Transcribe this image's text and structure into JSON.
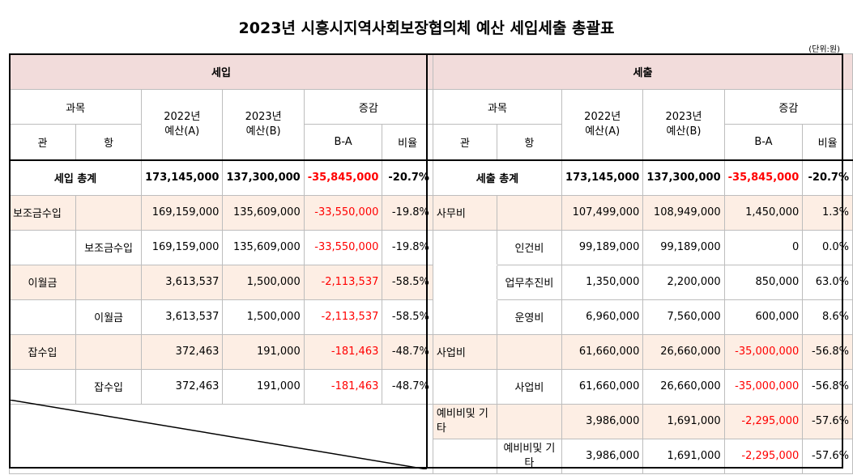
{
  "title": "2023년 시흥시지역사회보장협의체 예산 세입세출 총괄표",
  "unit": "(단위:원)",
  "income": {
    "section_label": "세입",
    "headers": {
      "subject": "과목",
      "gwan": "관",
      "hang": "항",
      "budget2022_year": "2022년",
      "budget2022_label": "예산(A)",
      "budget2023_year": "2023년",
      "budget2023_label": "예산(B)",
      "change": "증감",
      "diff": "B-A",
      "ratio": "비율"
    },
    "total": {
      "label": "세입 총계",
      "b2022": "173,145,000",
      "b2023": "137,300,000",
      "diff": "-35,845,000",
      "ratio": "-20.7%"
    },
    "rows": [
      {
        "gwan": "보조금수입",
        "hang": "",
        "b2022": "169,159,000",
        "b2023": "135,609,000",
        "diff": "-33,550,000",
        "ratio": "-19.8%"
      },
      {
        "gwan": "",
        "hang": "보조금수입",
        "b2022": "169,159,000",
        "b2023": "135,609,000",
        "diff": "-33,550,000",
        "ratio": "-19.8%"
      },
      {
        "gwan": "이월금",
        "hang": "",
        "b2022": "3,613,537",
        "b2023": "1,500,000",
        "diff": "-2,113,537",
        "ratio": "-58.5%"
      },
      {
        "gwan": "",
        "hang": "이월금",
        "b2022": "3,613,537",
        "b2023": "1,500,000",
        "diff": "-2,113,537",
        "ratio": "-58.5%"
      },
      {
        "gwan": "잡수입",
        "hang": "",
        "b2022": "372,463",
        "b2023": "191,000",
        "diff": "-181,463",
        "ratio": "-48.7%"
      },
      {
        "gwan": "",
        "hang": "잡수입",
        "b2022": "372,463",
        "b2023": "191,000",
        "diff": "-181,463",
        "ratio": "-48.7%"
      }
    ]
  },
  "expense": {
    "section_label": "세출",
    "headers": {
      "subject": "과목",
      "gwan": "관",
      "hang": "항",
      "budget2022_year": "2022년",
      "budget2022_label": "예산(A)",
      "budget2023_year": "2023년",
      "budget2023_label": "예산(B)",
      "change": "증감",
      "diff": "B-A",
      "ratio": "비율"
    },
    "total": {
      "label": "세출 총계",
      "b2022": "173,145,000",
      "b2023": "137,300,000",
      "diff": "-35,845,000",
      "ratio": "-20.7%"
    },
    "rows": [
      {
        "gwan": "사무비",
        "hang": "",
        "b2022": "107,499,000",
        "b2023": "108,949,000",
        "diff": "1,450,000",
        "ratio": "1.3%"
      },
      {
        "gwan": "",
        "hang": "인건비",
        "b2022": "99,189,000",
        "b2023": "99,189,000",
        "diff": "0",
        "ratio": "0.0%"
      },
      {
        "gwan": "",
        "hang": "업무추진비",
        "b2022": "1,350,000",
        "b2023": "2,200,000",
        "diff": "850,000",
        "ratio": "63.0%"
      },
      {
        "gwan": "",
        "hang": "운영비",
        "b2022": "6,960,000",
        "b2023": "7,560,000",
        "diff": "600,000",
        "ratio": "8.6%"
      },
      {
        "gwan": "사업비",
        "hang": "",
        "b2022": "61,660,000",
        "b2023": "26,660,000",
        "diff": "-35,000,000",
        "ratio": "-56.8%"
      },
      {
        "gwan": "",
        "hang": "사업비",
        "b2022": "61,660,000",
        "b2023": "26,660,000",
        "diff": "-35,000,000",
        "ratio": "-56.8%"
      },
      {
        "gwan": "예비비및 기타",
        "hang": "",
        "b2022": "3,986,000",
        "b2023": "1,691,000",
        "diff": "-2,295,000",
        "ratio": "-57.6%"
      },
      {
        "gwan": "",
        "hang": "예비비및 기타",
        "b2022": "3,986,000",
        "b2023": "1,691,000",
        "diff": "-2,295,000",
        "ratio": "-57.6%"
      }
    ]
  },
  "colors": {
    "header_fill": "#f2dcdb",
    "gwan_row_fill": "#fdeee4",
    "negative_text": "#ff0000"
  }
}
